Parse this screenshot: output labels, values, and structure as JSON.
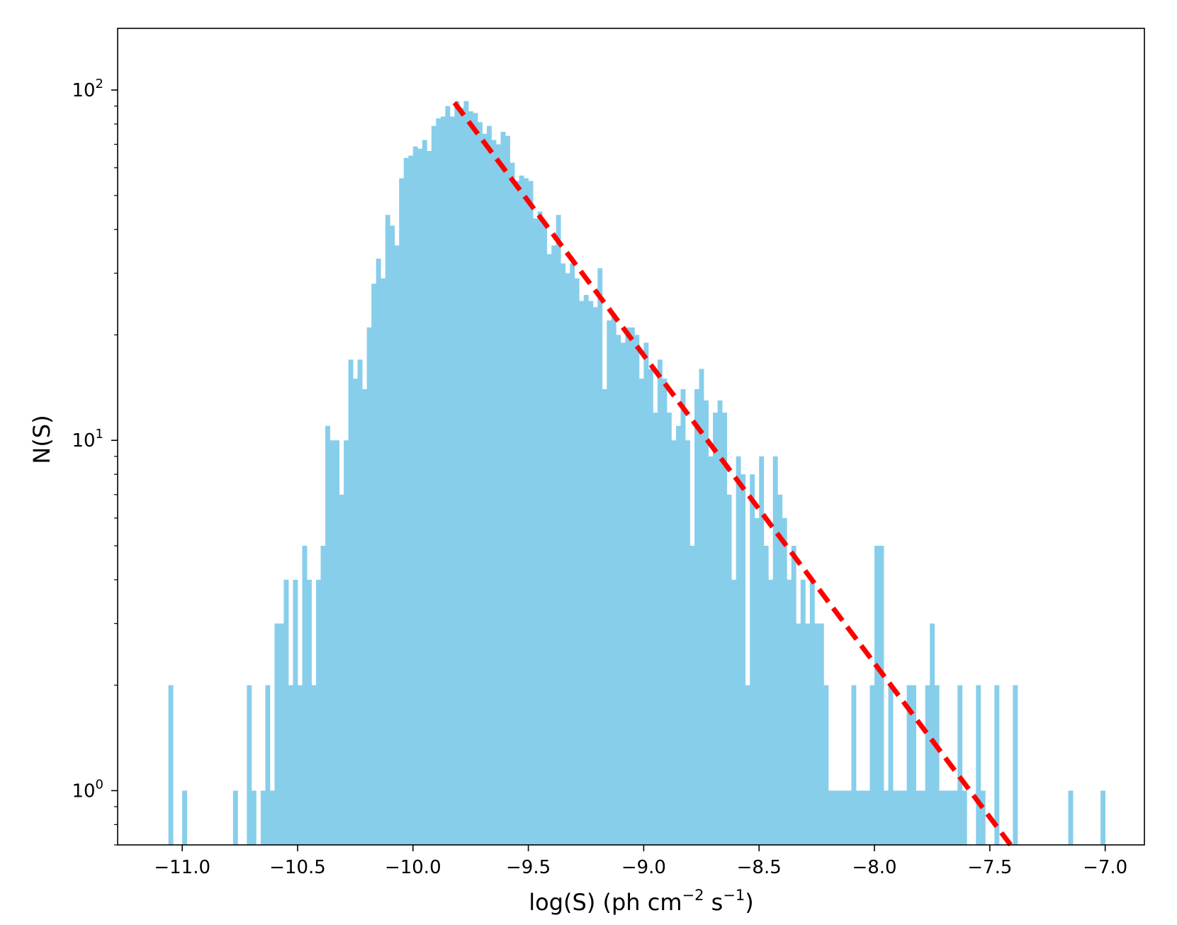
{
  "chart_data": {
    "type": "bar",
    "subtype": "histogram",
    "xlabel": "log(S) (ph cm",
    "xlabel_sup1": "−2",
    "xlabel_mid": " s",
    "xlabel_sup2": "−1",
    "xlabel_end": ")",
    "ylabel": "N(S)",
    "xlim": [
      -11.28,
      -6.83
    ],
    "ylim": [
      0.7,
      150
    ],
    "y_scale": "log",
    "grid": false,
    "bar_color": "#87CEEB",
    "fit_line_color": "#FF0000",
    "x_ticks": [
      {
        "value": -11.0,
        "label": "−11.0"
      },
      {
        "value": -10.5,
        "label": "−10.5"
      },
      {
        "value": -10.0,
        "label": "−10.0"
      },
      {
        "value": -9.5,
        "label": "−9.5"
      },
      {
        "value": -9.0,
        "label": "−9.0"
      },
      {
        "value": -8.5,
        "label": "−8.5"
      },
      {
        "value": -8.0,
        "label": "−8.0"
      },
      {
        "value": -7.5,
        "label": "−7.5"
      },
      {
        "value": -7.0,
        "label": "−7.0"
      }
    ],
    "y_ticks": [
      {
        "value": 1,
        "base": "10",
        "exp": "0"
      },
      {
        "value": 10,
        "base": "10",
        "exp": "1"
      },
      {
        "value": 100,
        "base": "10",
        "exp": "2"
      }
    ],
    "bin_width": 0.02,
    "bins": [
      [
        -11.05,
        2
      ],
      [
        -10.99,
        1
      ],
      [
        -10.77,
        1
      ],
      [
        -10.71,
        2
      ],
      [
        -10.69,
        1
      ],
      [
        -10.65,
        1
      ],
      [
        -10.63,
        2
      ],
      [
        -10.61,
        1
      ],
      [
        -10.59,
        3
      ],
      [
        -10.57,
        3
      ],
      [
        -10.55,
        4
      ],
      [
        -10.53,
        2
      ],
      [
        -10.51,
        4
      ],
      [
        -10.49,
        2
      ],
      [
        -10.47,
        5
      ],
      [
        -10.45,
        4
      ],
      [
        -10.43,
        2
      ],
      [
        -10.41,
        4
      ],
      [
        -10.39,
        5
      ],
      [
        -10.37,
        11
      ],
      [
        -10.35,
        10
      ],
      [
        -10.33,
        10
      ],
      [
        -10.31,
        7
      ],
      [
        -10.29,
        10
      ],
      [
        -10.27,
        17
      ],
      [
        -10.25,
        15
      ],
      [
        -10.23,
        17
      ],
      [
        -10.21,
        14
      ],
      [
        -10.19,
        21
      ],
      [
        -10.17,
        28
      ],
      [
        -10.15,
        33
      ],
      [
        -10.13,
        29
      ],
      [
        -10.11,
        44
      ],
      [
        -10.09,
        41
      ],
      [
        -10.07,
        36
      ],
      [
        -10.05,
        56
      ],
      [
        -10.03,
        64
      ],
      [
        -10.01,
        65
      ],
      [
        -9.99,
        69
      ],
      [
        -9.97,
        68
      ],
      [
        -9.95,
        72
      ],
      [
        -9.93,
        67
      ],
      [
        -9.91,
        79
      ],
      [
        -9.89,
        83
      ],
      [
        -9.87,
        84
      ],
      [
        -9.85,
        90
      ],
      [
        -9.83,
        84
      ],
      [
        -9.81,
        93
      ],
      [
        -9.79,
        89
      ],
      [
        -9.77,
        93
      ],
      [
        -9.75,
        87
      ],
      [
        -9.73,
        86
      ],
      [
        -9.71,
        81
      ],
      [
        -9.69,
        75
      ],
      [
        -9.67,
        79
      ],
      [
        -9.65,
        72
      ],
      [
        -9.63,
        70
      ],
      [
        -9.61,
        76
      ],
      [
        -9.59,
        74
      ],
      [
        -9.57,
        62
      ],
      [
        -9.55,
        55
      ],
      [
        -9.53,
        57
      ],
      [
        -9.51,
        56
      ],
      [
        -9.49,
        55
      ],
      [
        -9.47,
        43
      ],
      [
        -9.45,
        45
      ],
      [
        -9.43,
        42
      ],
      [
        -9.41,
        34
      ],
      [
        -9.39,
        36
      ],
      [
        -9.37,
        44
      ],
      [
        -9.35,
        32
      ],
      [
        -9.33,
        30
      ],
      [
        -9.31,
        32
      ],
      [
        -9.29,
        29
      ],
      [
        -9.27,
        25
      ],
      [
        -9.25,
        26
      ],
      [
        -9.23,
        25
      ],
      [
        -9.21,
        24
      ],
      [
        -9.19,
        31
      ],
      [
        -9.17,
        14
      ],
      [
        -9.15,
        22
      ],
      [
        -9.13,
        23
      ],
      [
        -9.11,
        20
      ],
      [
        -9.09,
        19
      ],
      [
        -9.07,
        21
      ],
      [
        -9.05,
        21
      ],
      [
        -9.03,
        20
      ],
      [
        -9.01,
        15
      ],
      [
        -8.99,
        19
      ],
      [
        -8.97,
        16
      ],
      [
        -8.95,
        12
      ],
      [
        -8.93,
        17
      ],
      [
        -8.91,
        15
      ],
      [
        -8.89,
        12
      ],
      [
        -8.87,
        10
      ],
      [
        -8.85,
        11
      ],
      [
        -8.83,
        14
      ],
      [
        -8.81,
        10
      ],
      [
        -8.79,
        5
      ],
      [
        -8.77,
        14
      ],
      [
        -8.75,
        16
      ],
      [
        -8.73,
        13
      ],
      [
        -8.71,
        9
      ],
      [
        -8.69,
        12
      ],
      [
        -8.67,
        13
      ],
      [
        -8.65,
        12
      ],
      [
        -8.63,
        7
      ],
      [
        -8.61,
        4
      ],
      [
        -8.59,
        9
      ],
      [
        -8.57,
        8
      ],
      [
        -8.55,
        2
      ],
      [
        -8.53,
        8
      ],
      [
        -8.51,
        6
      ],
      [
        -8.49,
        9
      ],
      [
        -8.47,
        5
      ],
      [
        -8.45,
        4
      ],
      [
        -8.43,
        9
      ],
      [
        -8.41,
        7
      ],
      [
        -8.39,
        6
      ],
      [
        -8.37,
        4
      ],
      [
        -8.35,
        5
      ],
      [
        -8.33,
        3
      ],
      [
        -8.31,
        4
      ],
      [
        -8.29,
        3
      ],
      [
        -8.27,
        4
      ],
      [
        -8.25,
        3
      ],
      [
        -8.23,
        3
      ],
      [
        -8.21,
        2
      ],
      [
        -8.19,
        1
      ],
      [
        -8.17,
        1
      ],
      [
        -8.15,
        1
      ],
      [
        -8.13,
        1
      ],
      [
        -8.11,
        1
      ],
      [
        -8.09,
        2
      ],
      [
        -8.07,
        1
      ],
      [
        -8.05,
        1
      ],
      [
        -8.03,
        1
      ],
      [
        -8.01,
        2
      ],
      [
        -7.99,
        5
      ],
      [
        -7.97,
        5
      ],
      [
        -7.95,
        1
      ],
      [
        -7.93,
        2
      ],
      [
        -7.91,
        1
      ],
      [
        -7.89,
        1
      ],
      [
        -7.87,
        1
      ],
      [
        -7.85,
        2
      ],
      [
        -7.83,
        2
      ],
      [
        -7.81,
        1
      ],
      [
        -7.79,
        1
      ],
      [
        -7.77,
        2
      ],
      [
        -7.75,
        3
      ],
      [
        -7.73,
        2
      ],
      [
        -7.71,
        1
      ],
      [
        -7.69,
        1
      ],
      [
        -7.67,
        1
      ],
      [
        -7.65,
        1
      ],
      [
        -7.63,
        2
      ],
      [
        -7.61,
        1
      ],
      [
        -7.55,
        2
      ],
      [
        -7.53,
        1
      ],
      [
        -7.47,
        2
      ],
      [
        -7.39,
        2
      ],
      [
        -7.15,
        1
      ],
      [
        -7.01,
        1
      ]
    ],
    "fit_line": {
      "style": "dashed",
      "x": [
        -9.82,
        -7.41
      ],
      "y": [
        92,
        0.7
      ]
    }
  }
}
